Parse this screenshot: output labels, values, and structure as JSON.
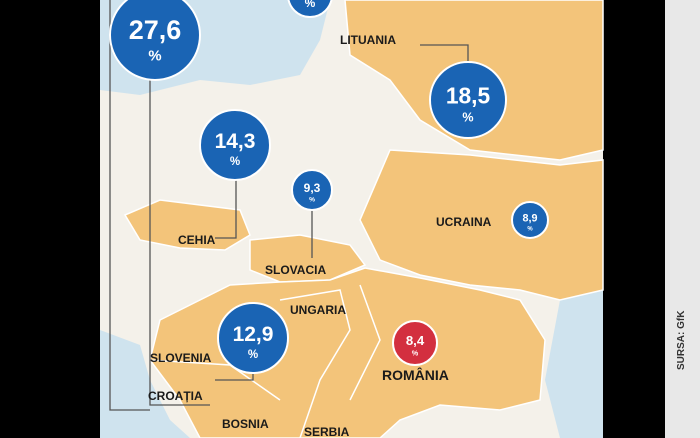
{
  "map": {
    "bubbles": [
      {
        "label": "27,6",
        "unit": "%"
      },
      {
        "unit": "%"
      },
      {
        "label": "18,5",
        "unit": "%"
      },
      {
        "label": "14,3",
        "unit": "%"
      },
      {
        "label": "9,3",
        "unit": "%"
      },
      {
        "label": "8,9",
        "unit": "%"
      },
      {
        "label": "12,9",
        "unit": "%"
      },
      {
        "label": "8,4",
        "unit": "%"
      }
    ],
    "countries": [
      "LITUANIA",
      "CEHIA",
      "SLOVACIA",
      "UNGARIA",
      "SLOVENIA",
      "CROAȚIA",
      "BOSNIA",
      "SERBIA",
      "UCRAINA",
      "ROMÂNIA"
    ],
    "source": "SURSA: GfK"
  }
}
